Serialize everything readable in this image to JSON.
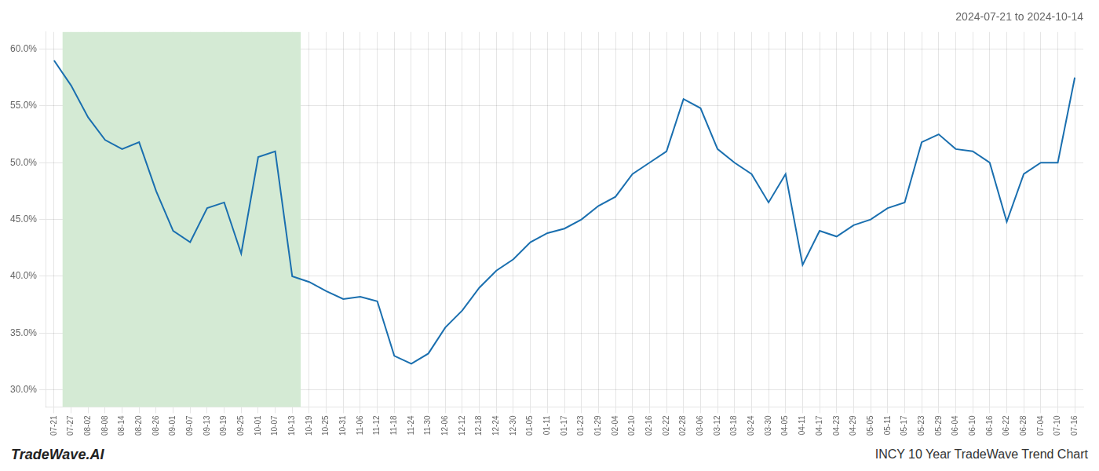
{
  "chart_data": {
    "type": "line",
    "title": "2024-07-21 to 2024-10-14",
    "annotations": [
      "TradeWave.AI",
      "INCY 10 Year TradeWave Trend Chart"
    ],
    "categories": [
      "07-21",
      "07-27",
      "08-02",
      "08-08",
      "08-14",
      "08-20",
      "08-26",
      "09-01",
      "09-07",
      "09-13",
      "09-19",
      "09-25",
      "10-01",
      "10-07",
      "10-13",
      "10-19",
      "10-25",
      "10-31",
      "11-06",
      "11-12",
      "11-18",
      "11-24",
      "11-30",
      "12-06",
      "12-12",
      "12-18",
      "12-24",
      "12-30",
      "01-05",
      "01-11",
      "01-17",
      "01-23",
      "01-29",
      "02-04",
      "02-10",
      "02-16",
      "02-22",
      "02-28",
      "03-06",
      "03-12",
      "03-18",
      "03-24",
      "03-30",
      "04-05",
      "04-11",
      "04-17",
      "04-23",
      "04-29",
      "05-05",
      "05-11",
      "05-17",
      "05-23",
      "05-29",
      "06-04",
      "06-10",
      "06-16",
      "06-22",
      "06-28",
      "07-04",
      "07-10",
      "07-16"
    ],
    "values": [
      0.59,
      0.568,
      0.54,
      0.52,
      0.512,
      0.518,
      0.475,
      0.44,
      0.43,
      0.46,
      0.465,
      0.42,
      0.505,
      0.51,
      0.4,
      0.395,
      0.387,
      0.38,
      0.382,
      0.378,
      0.33,
      0.323,
      0.332,
      0.355,
      0.37,
      0.39,
      0.405,
      0.415,
      0.43,
      0.438,
      0.442,
      0.45,
      0.462,
      0.47,
      0.49,
      0.5,
      0.51,
      0.556,
      0.548,
      0.512,
      0.5,
      0.49,
      0.465,
      0.49,
      0.41,
      0.44,
      0.435,
      0.445,
      0.45,
      0.46,
      0.465,
      0.518,
      0.525,
      0.512,
      0.51,
      0.5,
      0.448,
      0.49,
      0.5,
      0.5,
      0.575
    ],
    "color": "#1a6faf",
    "highlight": {
      "start": "07-27",
      "end": "10-13",
      "color": "#d4ead4"
    },
    "ylim": [
      0.285,
      0.615
    ],
    "yticks": [
      {
        "value": 0.3,
        "label": "30.0%"
      },
      {
        "value": 0.35,
        "label": "35.0%"
      },
      {
        "value": 0.4,
        "label": "40.0%"
      },
      {
        "value": 0.45,
        "label": "45.0%"
      },
      {
        "value": 0.5,
        "label": "50.0%"
      },
      {
        "value": 0.55,
        "label": "55.0%"
      },
      {
        "value": 0.6,
        "label": "60.0%"
      }
    ],
    "grid": true
  }
}
